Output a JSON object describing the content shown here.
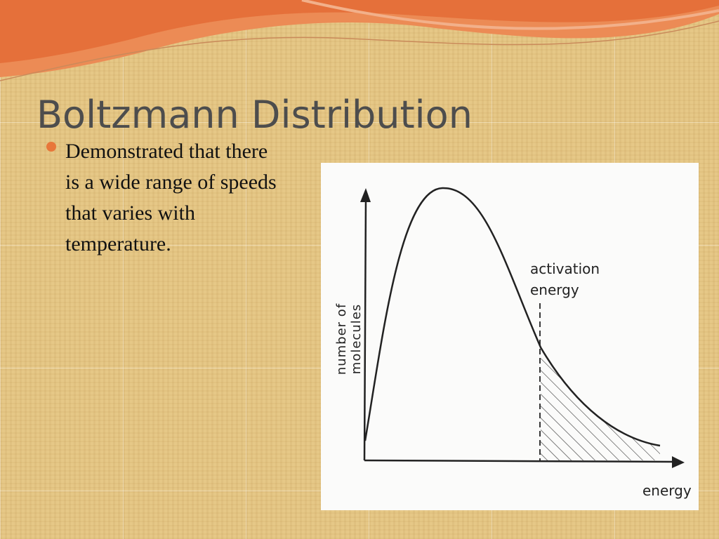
{
  "slide": {
    "title": "Boltzmann Distribution",
    "bullets": [
      "Demonstrated that there is a wide range of speeds that varies with temperature."
    ],
    "figure": {
      "y_axis_label": "number of molecules",
      "x_axis_label": "energy",
      "annotation": "activation energy"
    }
  }
}
